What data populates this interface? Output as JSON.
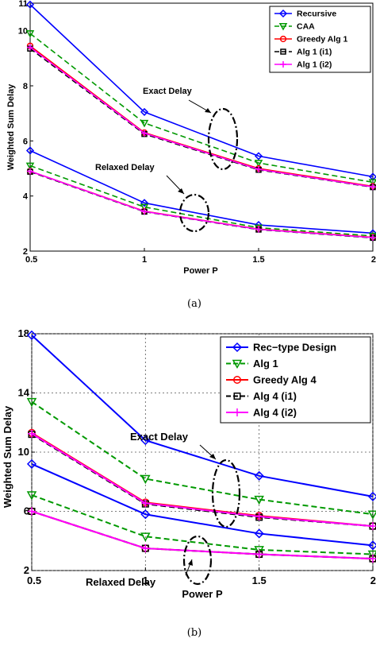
{
  "chart_data": [
    {
      "type": "line",
      "caption": "(a)",
      "xlabel": "Power P",
      "ylabel": "Weighted Sum Delay",
      "xlim": [
        0.5,
        2
      ],
      "ylim": [
        2,
        11
      ],
      "x_ticks": [
        "0.5",
        "1",
        "1.5",
        "2"
      ],
      "y_ticks": [
        "2",
        "4",
        "6",
        "8",
        "10",
        "11"
      ],
      "grid": false,
      "legend_position": "top-right",
      "x": [
        0.5,
        1,
        1.5,
        2
      ],
      "series": [
        {
          "name": "Recursive",
          "color": "#0000ff",
          "dash": "solid",
          "marker": "diamond",
          "exact": [
            10.95,
            7.05,
            5.45,
            4.7
          ],
          "relaxed": [
            5.65,
            3.75,
            2.95,
            2.65
          ]
        },
        {
          "name": "CAA",
          "color": "#009900",
          "dash": "dashed",
          "marker": "triangle-down",
          "exact": [
            9.9,
            6.65,
            5.2,
            4.5
          ],
          "relaxed": [
            5.1,
            3.6,
            2.85,
            2.55
          ]
        },
        {
          "name": "Greedy Alg 1",
          "color": "#ff0000",
          "dash": "solid",
          "marker": "circle",
          "exact": [
            9.45,
            6.3,
            5.0,
            4.35
          ],
          "relaxed": [
            4.9,
            3.45,
            2.8,
            2.5
          ]
        },
        {
          "name": "Alg 1 (i1)",
          "color": "#000000",
          "dash": "dashed",
          "marker": "square",
          "exact": [
            9.35,
            6.25,
            4.95,
            4.32
          ],
          "relaxed": [
            4.88,
            3.43,
            2.78,
            2.48
          ]
        },
        {
          "name": "Alg 1 (i2)",
          "color": "#ff00ff",
          "dash": "solid",
          "marker": "plus",
          "exact": [
            9.4,
            6.28,
            4.97,
            4.33
          ],
          "relaxed": [
            4.9,
            3.44,
            2.79,
            2.49
          ]
        }
      ],
      "annotations": [
        "Exact Delay",
        "Relaxed Delay"
      ]
    },
    {
      "type": "line",
      "caption": "(b)",
      "xlabel": "Power P",
      "ylabel": "Weighted Sum Delay",
      "xlim": [
        0.5,
        2
      ],
      "ylim": [
        2,
        18
      ],
      "x_ticks": [
        "0.5",
        "1",
        "1.5",
        "2"
      ],
      "y_ticks": [
        "2",
        "6",
        "10",
        "14",
        "18"
      ],
      "grid": true,
      "legend_position": "top-right",
      "x": [
        0.5,
        1,
        1.5,
        2
      ],
      "series": [
        {
          "name": "Rec−type Design",
          "color": "#0000ff",
          "dash": "solid",
          "marker": "diamond",
          "exact": [
            17.9,
            10.8,
            8.4,
            7.0
          ],
          "relaxed": [
            9.2,
            5.8,
            4.5,
            3.7
          ]
        },
        {
          "name": "Alg 1",
          "color": "#009900",
          "dash": "dashed",
          "marker": "triangle-down",
          "exact": [
            13.4,
            8.2,
            6.8,
            5.8
          ],
          "relaxed": [
            7.1,
            4.3,
            3.4,
            3.1
          ]
        },
        {
          "name": "Greedy Alg 4",
          "color": "#ff0000",
          "dash": "solid",
          "marker": "circle",
          "exact": [
            11.3,
            6.6,
            5.7,
            5.0
          ],
          "relaxed": [
            6.0,
            3.5,
            3.1,
            2.8
          ]
        },
        {
          "name": "Alg 4 (i1)",
          "color": "#000000",
          "dash": "dashed",
          "marker": "square",
          "exact": [
            11.2,
            6.5,
            5.6,
            5.0
          ],
          "relaxed": [
            6.0,
            3.5,
            3.1,
            2.8
          ]
        },
        {
          "name": "Alg 4 (i2)",
          "color": "#ff00ff",
          "dash": "solid",
          "marker": "plus",
          "exact": [
            11.25,
            6.55,
            5.65,
            5.0
          ],
          "relaxed": [
            6.0,
            3.5,
            3.1,
            2.8
          ]
        }
      ],
      "annotations": [
        "Exact Delay",
        "Relaxed Delay"
      ]
    }
  ]
}
